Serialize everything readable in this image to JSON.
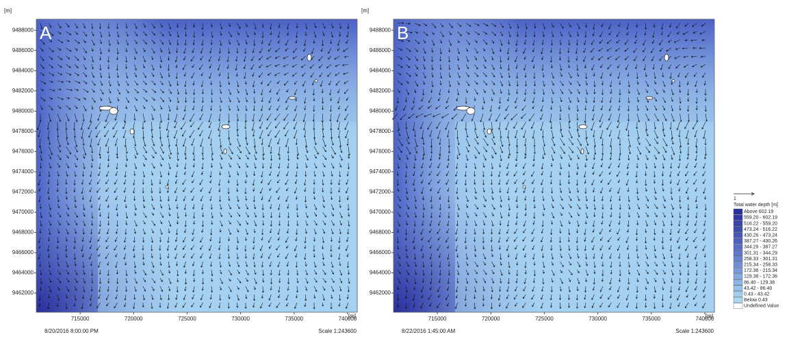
{
  "axes": {
    "xlim": [
      710900,
      740900
    ],
    "ylim": [
      9460100,
      9489100
    ],
    "xticks": [
      715000,
      720000,
      725000,
      730000,
      735000,
      740000
    ],
    "yticks": [
      9462000,
      9464000,
      9466000,
      9468000,
      9470000,
      9472000,
      9474000,
      9476000,
      9478000,
      9480000,
      9482000,
      9484000,
      9486000,
      9488000
    ]
  },
  "panels": [
    {
      "label": "A",
      "y_unit": "[m]",
      "x_unit": "[m]",
      "timestamp": "8/20/2016 8:00:00 PM",
      "scale": "Scale 1:243600"
    },
    {
      "label": "B",
      "y_unit": "[m]",
      "x_unit": "[m]",
      "timestamp": "8/22/2016 1:45:00 AM",
      "scale": "Scale 1:243600"
    }
  ],
  "legend": {
    "vector_scale": "1",
    "title": "Total water depth [m]",
    "items": [
      {
        "label": "Above   602.19",
        "color": "#2b2f9c"
      },
      {
        "label": "559.20 - 602.19",
        "color": "#3238a4"
      },
      {
        "label": "516.22 - 559.20",
        "color": "#3941ab"
      },
      {
        "label": "473.24 - 516.22",
        "color": "#404bb2"
      },
      {
        "label": "430.26 - 473.24",
        "color": "#4855b9"
      },
      {
        "label": "387.27 - 430.26",
        "color": "#5060c0"
      },
      {
        "label": "344.29 - 387.27",
        "color": "#586bc6"
      },
      {
        "label": "301.31 - 344.29",
        "color": "#6077cc"
      },
      {
        "label": "258.33 - 301.31",
        "color": "#6883d2"
      },
      {
        "label": "215.34 - 258.33",
        "color": "#718fd8"
      },
      {
        "label": "172.36 - 215.34",
        "color": "#7a9bdd"
      },
      {
        "label": "129.38 - 172.36",
        "color": "#84a8e2"
      },
      {
        "label": "86.40 - 129.38",
        "color": "#8db5e7"
      },
      {
        "label": "43.42 - 86.40",
        "color": "#97c2eb"
      },
      {
        "label": "0.43 - 43.42",
        "color": "#a1ceef"
      },
      {
        "label": "Below   0.43",
        "color": "#acdaf4"
      },
      {
        "label": "Undefined Value",
        "color": "#ffffff"
      }
    ]
  }
}
